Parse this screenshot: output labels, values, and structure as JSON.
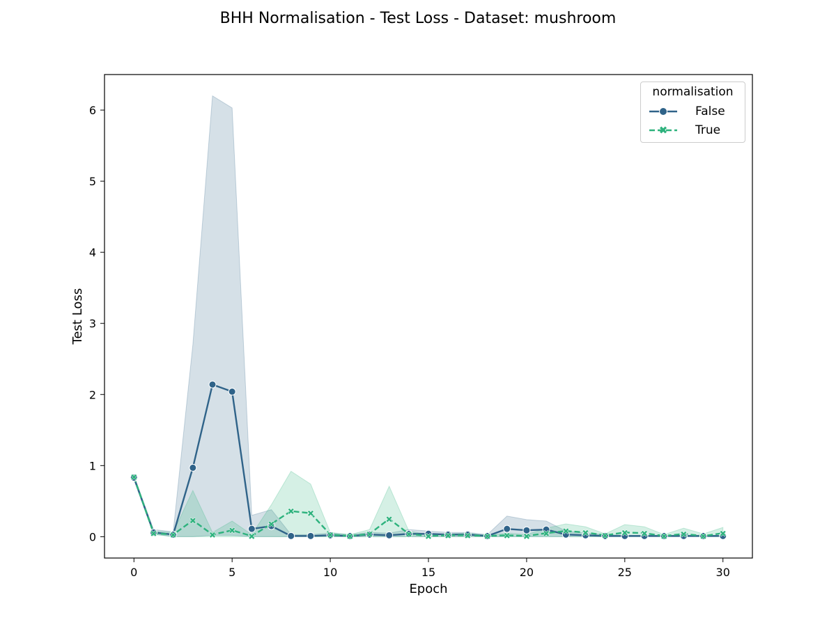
{
  "chart_data": {
    "type": "line",
    "title": "BHH Normalisation - Test Loss - Dataset: mushroom",
    "xlabel": "Epoch",
    "ylabel": "Test Loss",
    "xlim": [
      -1.5,
      31.5
    ],
    "ylim": [
      -0.3,
      6.5
    ],
    "xticks": [
      0,
      5,
      10,
      15,
      20,
      25,
      30
    ],
    "yticks": [
      0,
      1,
      2,
      3,
      4,
      5,
      6
    ],
    "grid": false,
    "legend": {
      "title": "normalisation",
      "placement": "top-right"
    },
    "x": [
      0,
      1,
      2,
      3,
      4,
      5,
      6,
      7,
      8,
      9,
      10,
      11,
      12,
      13,
      14,
      15,
      16,
      17,
      18,
      19,
      20,
      21,
      22,
      23,
      24,
      25,
      26,
      27,
      28,
      29,
      30
    ],
    "series": [
      {
        "name": "False",
        "color": "#2f6389",
        "marker": "circle",
        "dashed": false,
        "values": [
          0.83,
          0.06,
          0.03,
          0.97,
          2.14,
          2.04,
          0.11,
          0.15,
          0.01,
          0.01,
          0.02,
          0.01,
          0.03,
          0.02,
          0.04,
          0.04,
          0.03,
          0.03,
          0.01,
          0.11,
          0.09,
          0.1,
          0.03,
          0.02,
          0.01,
          0.01,
          0.01,
          0.01,
          0.01,
          0.01,
          0.01
        ],
        "ci_lower": [
          0.8,
          0.04,
          0.0,
          0.0,
          0.02,
          0.02,
          0.0,
          0.0,
          0.0,
          0.0,
          0.0,
          0.0,
          0.0,
          0.0,
          0.0,
          0.0,
          0.0,
          0.0,
          0.0,
          0.0,
          0.0,
          0.0,
          0.0,
          0.0,
          0.0,
          0.0,
          0.0,
          0.0,
          0.0,
          0.0,
          0.0
        ],
        "ci_upper": [
          0.86,
          0.1,
          0.07,
          2.7,
          6.2,
          6.03,
          0.3,
          0.38,
          0.03,
          0.03,
          0.05,
          0.03,
          0.06,
          0.05,
          0.1,
          0.08,
          0.06,
          0.06,
          0.03,
          0.29,
          0.24,
          0.22,
          0.08,
          0.05,
          0.03,
          0.02,
          0.02,
          0.02,
          0.02,
          0.02,
          0.02
        ]
      },
      {
        "name": "True",
        "color": "#2db27d",
        "marker": "x",
        "dashed": true,
        "values": [
          0.84,
          0.05,
          0.03,
          0.23,
          0.03,
          0.09,
          0.01,
          0.18,
          0.36,
          0.33,
          0.03,
          0.01,
          0.04,
          0.25,
          0.04,
          0.01,
          0.02,
          0.02,
          0.01,
          0.02,
          0.01,
          0.05,
          0.08,
          0.06,
          0.02,
          0.06,
          0.05,
          0.01,
          0.04,
          0.01,
          0.05
        ],
        "ci_lower": [
          0.82,
          0.03,
          0.0,
          0.0,
          0.0,
          0.0,
          0.0,
          0.0,
          0.0,
          0.0,
          0.0,
          0.0,
          0.0,
          0.0,
          0.0,
          0.0,
          0.0,
          0.0,
          0.0,
          0.0,
          0.0,
          0.0,
          0.0,
          0.0,
          0.0,
          0.0,
          0.0,
          0.0,
          0.0,
          0.0,
          0.0
        ],
        "ci_upper": [
          0.86,
          0.08,
          0.06,
          0.65,
          0.06,
          0.22,
          0.03,
          0.45,
          0.92,
          0.74,
          0.06,
          0.03,
          0.1,
          0.71,
          0.08,
          0.03,
          0.04,
          0.05,
          0.02,
          0.05,
          0.03,
          0.12,
          0.18,
          0.14,
          0.04,
          0.17,
          0.14,
          0.03,
          0.12,
          0.04,
          0.13
        ]
      }
    ]
  }
}
